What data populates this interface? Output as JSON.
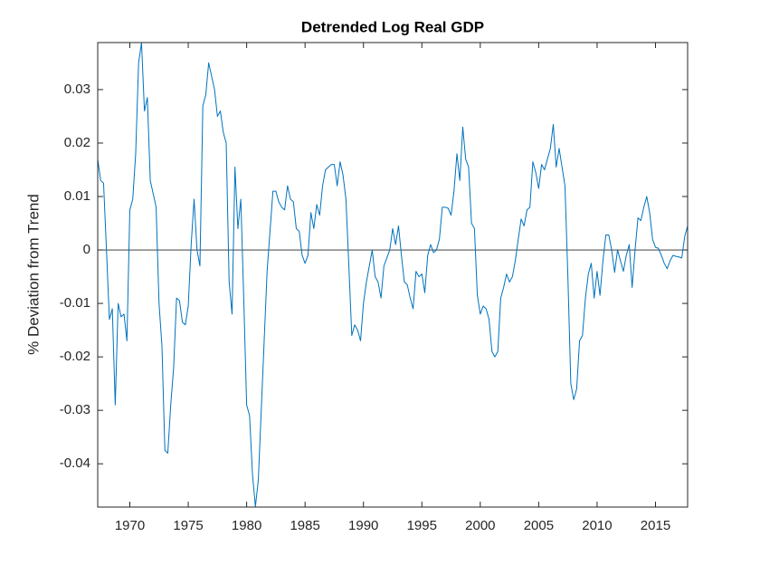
{
  "chart_data": {
    "type": "line",
    "title": "Detrended Log Real GDP",
    "y_label": "% Deviation from Trend",
    "color": "#0072bd",
    "hline": 0,
    "xlim": [
      1967.25,
      2017.75
    ],
    "xticks": [
      1970,
      1975,
      1980,
      1985,
      1990,
      1995,
      2000,
      2005,
      2010,
      2015
    ],
    "ylim": [
      -0.0481,
      0.0388
    ],
    "yticks": [
      -0.04,
      -0.03,
      -0.02,
      -0.01,
      0,
      0.01,
      0.02,
      0.03
    ],
    "x": [
      1967.25,
      1967.5,
      1967.75,
      1968,
      1968.25,
      1968.5,
      1968.75,
      1969,
      1969.25,
      1969.5,
      1969.75,
      1970,
      1970.25,
      1970.5,
      1970.75,
      1971,
      1971.25,
      1971.5,
      1971.75,
      1972,
      1972.25,
      1972.5,
      1972.75,
      1973,
      1973.25,
      1973.5,
      1973.75,
      1974,
      1974.25,
      1974.5,
      1974.75,
      1975,
      1975.25,
      1975.5,
      1975.75,
      1976,
      1976.25,
      1976.5,
      1976.75,
      1977,
      1977.25,
      1977.5,
      1977.75,
      1978,
      1978.25,
      1978.5,
      1978.75,
      1979,
      1979.25,
      1979.5,
      1979.75,
      1980,
      1980.25,
      1980.5,
      1980.75,
      1981,
      1981.25,
      1981.5,
      1981.75,
      1982,
      1982.25,
      1982.5,
      1982.75,
      1983,
      1983.25,
      1983.5,
      1983.75,
      1984,
      1984.25,
      1984.5,
      1984.75,
      1985,
      1985.25,
      1985.5,
      1985.75,
      1986,
      1986.25,
      1986.5,
      1986.75,
      1987,
      1987.25,
      1987.5,
      1987.75,
      1988,
      1988.25,
      1988.5,
      1988.75,
      1989,
      1989.25,
      1989.5,
      1989.75,
      1990,
      1990.25,
      1990.5,
      1990.75,
      1991,
      1991.25,
      1991.5,
      1991.75,
      1992,
      1992.25,
      1992.5,
      1992.75,
      1993,
      1993.25,
      1993.5,
      1993.75,
      1994,
      1994.25,
      1994.5,
      1994.75,
      1995,
      1995.25,
      1995.5,
      1995.75,
      1996,
      1996.25,
      1996.5,
      1996.75,
      1997,
      1997.25,
      1997.5,
      1997.75,
      1998,
      1998.25,
      1998.5,
      1998.75,
      1999,
      1999.25,
      1999.5,
      1999.75,
      2000,
      2000.25,
      2000.5,
      2000.75,
      2001,
      2001.25,
      2001.5,
      2001.75,
      2002,
      2002.25,
      2002.5,
      2002.75,
      2003,
      2003.25,
      2003.5,
      2003.75,
      2004,
      2004.25,
      2004.5,
      2004.75,
      2005,
      2005.25,
      2005.5,
      2005.75,
      2006,
      2006.25,
      2006.5,
      2006.75,
      2007,
      2007.25,
      2007.5,
      2007.75,
      2008,
      2008.25,
      2008.5,
      2008.75,
      2009,
      2009.25,
      2009.5,
      2009.75,
      2010,
      2010.25,
      2010.5,
      2010.75,
      2011,
      2011.25,
      2011.5,
      2011.75,
      2012,
      2012.25,
      2012.5,
      2012.75,
      2013,
      2013.25,
      2013.5,
      2013.75,
      2014,
      2014.25,
      2014.5,
      2014.75,
      2015,
      2015.25,
      2015.5,
      2015.75,
      2016,
      2016.25,
      2016.5,
      2016.75,
      2017,
      2017.25,
      2017.5,
      2017.75
    ],
    "values": [
      0.017,
      0.013,
      0.0125,
      0.0,
      -0.013,
      -0.011,
      -0.029,
      -0.01,
      -0.0125,
      -0.012,
      -0.017,
      0.0075,
      0.0095,
      0.018,
      0.035,
      0.0388,
      0.026,
      0.0285,
      0.013,
      0.0105,
      0.008,
      -0.01,
      -0.018,
      -0.0375,
      -0.038,
      -0.029,
      -0.022,
      -0.009,
      -0.0095,
      -0.0135,
      -0.014,
      -0.0105,
      0.001,
      0.0095,
      0.0,
      -0.003,
      0.027,
      0.029,
      0.035,
      0.0325,
      0.03,
      0.025,
      0.026,
      0.022,
      0.02,
      -0.006,
      -0.012,
      0.0155,
      0.004,
      0.0095,
      -0.009,
      -0.029,
      -0.031,
      -0.042,
      -0.048,
      -0.043,
      -0.03,
      -0.017,
      -0.004,
      0.0035,
      0.011,
      0.011,
      0.009,
      0.008,
      0.0075,
      0.012,
      0.0095,
      0.009,
      0.004,
      0.0035,
      -0.001,
      -0.0025,
      -0.001,
      0.007,
      0.004,
      0.0085,
      0.0065,
      0.012,
      0.015,
      0.0155,
      0.016,
      0.016,
      0.012,
      0.0165,
      0.014,
      0.0095,
      -0.003,
      -0.016,
      -0.014,
      -0.015,
      -0.017,
      -0.01,
      -0.006,
      -0.003,
      0.0,
      -0.005,
      -0.006,
      -0.009,
      -0.003,
      -0.0015,
      0.0,
      0.004,
      0.001,
      0.0045,
      -0.001,
      -0.006,
      -0.0065,
      -0.009,
      -0.011,
      -0.004,
      -0.005,
      -0.0045,
      -0.008,
      -0.001,
      0.001,
      -0.0005,
      0.0,
      0.002,
      0.008,
      0.008,
      0.0078,
      0.0065,
      0.011,
      0.018,
      0.013,
      0.023,
      0.017,
      0.0155,
      0.005,
      0.004,
      -0.0085,
      -0.012,
      -0.0105,
      -0.011,
      -0.013,
      -0.019,
      -0.02,
      -0.019,
      -0.009,
      -0.007,
      -0.0045,
      -0.006,
      -0.005,
      -0.002,
      0.002,
      0.0058,
      0.0045,
      0.0075,
      0.008,
      0.0165,
      0.0145,
      0.0115,
      0.016,
      0.015,
      0.017,
      0.019,
      0.0235,
      0.0155,
      0.019,
      0.0155,
      0.012,
      -0.005,
      -0.025,
      -0.028,
      -0.026,
      -0.017,
      -0.016,
      -0.009,
      -0.0045,
      -0.0025,
      -0.009,
      -0.004,
      -0.0085,
      -0.002,
      0.0028,
      0.0028,
      0.0,
      -0.0042,
      0.0,
      -0.002,
      -0.004,
      -0.001,
      0.001,
      -0.007,
      0.0,
      0.006,
      0.0055,
      0.008,
      0.01,
      0.007,
      0.002,
      0.0005,
      0.0003,
      -0.001,
      -0.0025,
      -0.0035,
      -0.002,
      -0.001,
      -0.0012,
      -0.0013,
      -0.0015,
      0.0025,
      0.0045
    ]
  }
}
